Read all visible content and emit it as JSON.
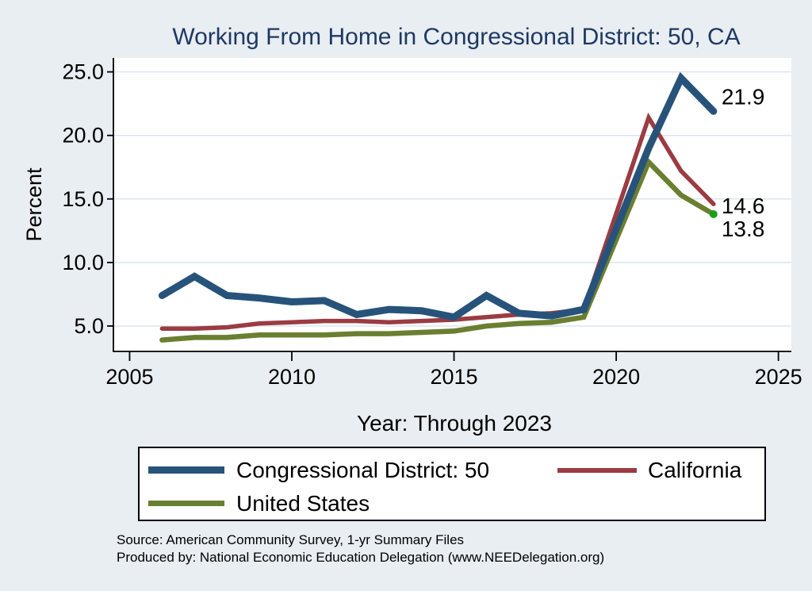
{
  "chart_data": {
    "type": "line",
    "title": "Working From Home in Congressional District: 50, CA",
    "xlabel": "Year: Through 2023",
    "ylabel": "Percent",
    "x_tick_labels": [
      "2005",
      "2010",
      "2015",
      "2020",
      "2025"
    ],
    "x_tick_years": [
      2005,
      2010,
      2015,
      2020,
      2025
    ],
    "y_ticks": [
      5,
      10,
      15,
      20,
      25
    ],
    "y_tick_labels": [
      "5.0",
      "10.0",
      "15.0",
      "20.0",
      "25.0"
    ],
    "xlim": [
      2004.5,
      2025.4
    ],
    "ylim": [
      3.0,
      26.1
    ],
    "grid": "horizontal",
    "legend_position": "bottom",
    "x": [
      2006,
      2007,
      2008,
      2009,
      2010,
      2011,
      2012,
      2013,
      2014,
      2015,
      2016,
      2017,
      2018,
      2019,
      2021,
      2022,
      2023
    ],
    "series": [
      {
        "name": "Congressional District: 50",
        "color": "#27537a",
        "line_width": 9,
        "values": [
          7.4,
          8.9,
          7.4,
          7.2,
          6.9,
          7.0,
          5.9,
          6.3,
          6.2,
          5.7,
          7.4,
          6.0,
          5.8,
          6.3,
          19.0,
          24.5,
          21.9
        ],
        "end_label": "21.9"
      },
      {
        "name": "California",
        "color": "#9b3b42",
        "line_width": 5.5,
        "values": [
          4.8,
          4.8,
          4.9,
          5.2,
          5.3,
          5.4,
          5.4,
          5.3,
          5.4,
          5.5,
          5.7,
          5.9,
          6.0,
          6.3,
          21.4,
          17.2,
          14.6
        ],
        "end_label": "14.6"
      },
      {
        "name": "United States",
        "color": "#6a7f30",
        "line_width": 6.5,
        "values": [
          3.9,
          4.1,
          4.1,
          4.3,
          4.3,
          4.3,
          4.4,
          4.4,
          4.5,
          4.6,
          5.0,
          5.2,
          5.3,
          5.7,
          17.9,
          15.3,
          13.8
        ],
        "end_label": "13.8",
        "end_marker_color": "#18a018"
      }
    ]
  },
  "notes": {
    "source": "Source: American Community Survey, 1-yr Summary Files",
    "produced_by": "Produced by: National Economic Education Delegation (www.NEEDelegation.org)"
  }
}
